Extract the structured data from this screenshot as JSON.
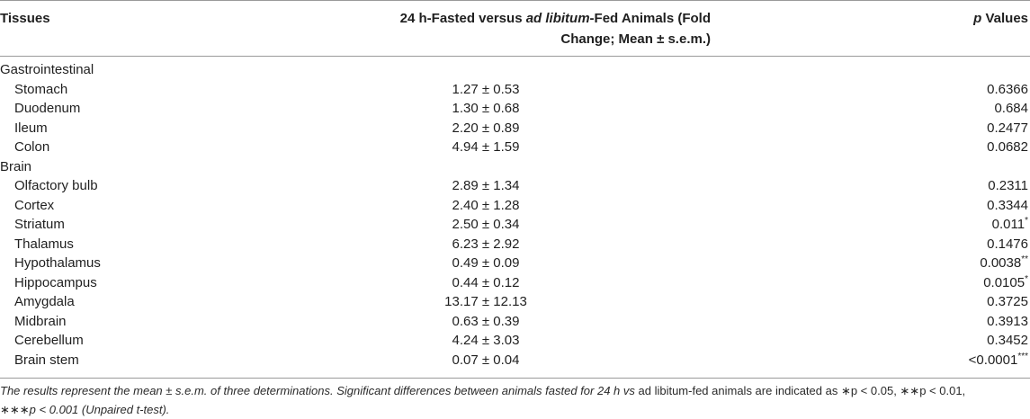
{
  "header": {
    "tissues": "Tissues",
    "fold_pre": "24 h-Fasted versus ",
    "fold_italic": "ad libitum",
    "fold_post": "-Fed Animals (Fold",
    "fold_line2": "Change; Mean ± s.e.m.)",
    "p_italic": "p",
    "p_post": " Values"
  },
  "rows": [
    {
      "type": "group",
      "name": "Gastrointestinal"
    },
    {
      "type": "item",
      "name": "Stomach",
      "fold": "1.27 ± 0.53",
      "p": "0.6366",
      "sig": ""
    },
    {
      "type": "item",
      "name": "Duodenum",
      "fold": "1.30 ± 0.68",
      "p": "0.684",
      "sig": ""
    },
    {
      "type": "item",
      "name": "Ileum",
      "fold": "2.20 ± 0.89",
      "p": "0.2477",
      "sig": ""
    },
    {
      "type": "item",
      "name": "Colon",
      "fold": "4.94 ± 1.59",
      "p": "0.0682",
      "sig": ""
    },
    {
      "type": "group",
      "name": "Brain"
    },
    {
      "type": "item",
      "name": "Olfactory bulb",
      "fold": "2.89 ± 1.34",
      "p": "0.2311",
      "sig": ""
    },
    {
      "type": "item",
      "name": "Cortex",
      "fold": "2.40 ± 1.28",
      "p": "0.3344",
      "sig": ""
    },
    {
      "type": "item",
      "name": "Striatum",
      "fold": "2.50 ± 0.34",
      "p": "0.011",
      "sig": "*"
    },
    {
      "type": "item",
      "name": "Thalamus",
      "fold": "6.23 ± 2.92",
      "p": "0.1476",
      "sig": ""
    },
    {
      "type": "item",
      "name": "Hypothalamus",
      "fold": "0.49 ± 0.09",
      "p": "0.0038",
      "sig": "**"
    },
    {
      "type": "item",
      "name": "Hippocampus",
      "fold": "0.44 ± 0.12",
      "p": "0.0105",
      "sig": "*"
    },
    {
      "type": "item",
      "name": "Amygdala",
      "fold": "13.17 ± 12.13",
      "p": "0.3725",
      "sig": ""
    },
    {
      "type": "item",
      "name": "Midbrain",
      "fold": "0.63 ± 0.39",
      "p": "0.3913",
      "sig": ""
    },
    {
      "type": "item",
      "name": "Cerebellum",
      "fold": "4.24 ± 3.03",
      "p": "0.3452",
      "sig": ""
    },
    {
      "type": "item",
      "name": "Brain stem",
      "fold": "0.07 ± 0.04",
      "p": "<0.0001",
      "sig": "***"
    }
  ],
  "footnote": {
    "part1": "The results represent the mean ± s.e.m. of three determinations. Significant differences between animals fasted for 24 h ",
    "vs": "vs",
    "part2": " ad libitum-fed animals are indicated as ∗p < 0.05, ∗∗p < 0.01,",
    "line2": "∗∗∗p < 0.001 (Unpaired t-test)."
  }
}
